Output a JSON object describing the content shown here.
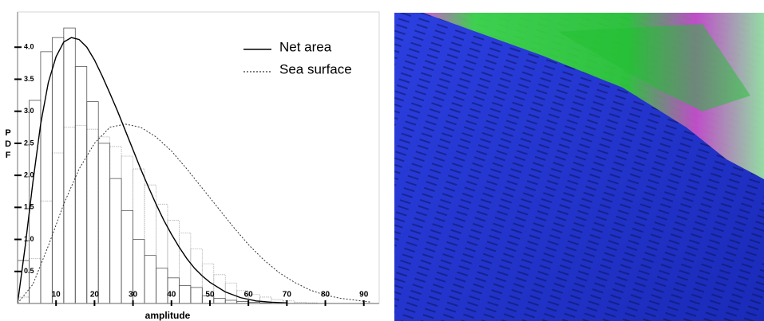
{
  "chart_data": {
    "type": "histogram",
    "x_label": "amplitude",
    "y_label": "PDF",
    "xlim": [
      0,
      94
    ],
    "ylim": [
      0,
      4.55
    ],
    "xticks": [
      10,
      20,
      30,
      40,
      50,
      60,
      70,
      80,
      90
    ],
    "yticks": [
      0.5,
      {
        "value": 1,
        "label": "1.0"
      },
      1.5,
      {
        "value": 2,
        "label": "2.0"
      },
      2.5,
      {
        "value": 3,
        "label": "3.0"
      },
      3.5,
      {
        "value": 4,
        "label": "4.0"
      }
    ],
    "bins": [
      0,
      3,
      6,
      9,
      12,
      15,
      18,
      21,
      24,
      27,
      30,
      33,
      36,
      39,
      42,
      45,
      48,
      51,
      54,
      57,
      60,
      63,
      66,
      69,
      72,
      75,
      78,
      81,
      84,
      87,
      90,
      93
    ],
    "histograms": [
      {
        "color": "#b0b0b0",
        "values": [
          0.1,
          0.7,
          1.6,
          2.35,
          2.75,
          2.78,
          2.72,
          2.6,
          2.45,
          2.3,
          2.1,
          1.85,
          1.55,
          1.3,
          1.1,
          0.85,
          0.62,
          0.45,
          0.32,
          0.2,
          0.14,
          0.1,
          0.06,
          0.04,
          0.02,
          0.01,
          0,
          0,
          0,
          0,
          0
        ]
      },
      {
        "color": "#555555",
        "values": [
          0.67,
          3.17,
          3.93,
          4.15,
          4.3,
          3.7,
          3.15,
          2.5,
          1.95,
          1.45,
          1.0,
          0.75,
          0.55,
          0.4,
          0.28,
          0.25,
          0.12,
          0.08,
          0.05,
          0.03,
          0.02,
          0.01,
          0,
          0,
          0,
          0,
          0,
          0,
          0,
          0,
          0
        ]
      }
    ],
    "series": [
      {
        "name": "Net area",
        "color": "#000000",
        "dash": "solid",
        "x": [
          0,
          2,
          4,
          6,
          8,
          10,
          12,
          14,
          16,
          18,
          20,
          22,
          24,
          26,
          28,
          30,
          32,
          34,
          36,
          38,
          40,
          42,
          44,
          46,
          48,
          50,
          54,
          58,
          62,
          66,
          70
        ],
        "values": [
          0,
          0.9,
          1.9,
          2.8,
          3.45,
          3.85,
          4.08,
          4.15,
          4.12,
          4.0,
          3.8,
          3.55,
          3.28,
          3.0,
          2.7,
          2.4,
          2.1,
          1.82,
          1.55,
          1.3,
          1.08,
          0.88,
          0.7,
          0.55,
          0.43,
          0.33,
          0.18,
          0.09,
          0.04,
          0.02,
          0.01
        ]
      },
      {
        "name": "Sea surface",
        "color": "#333333",
        "dash": "dotted",
        "x": [
          0,
          4,
          8,
          12,
          16,
          20,
          24,
          28,
          32,
          36,
          40,
          44,
          48,
          52,
          56,
          60,
          64,
          68,
          72,
          76,
          80,
          84,
          88,
          92
        ],
        "values": [
          0,
          0.3,
          0.9,
          1.55,
          2.1,
          2.5,
          2.75,
          2.8,
          2.75,
          2.6,
          2.38,
          2.1,
          1.8,
          1.5,
          1.2,
          0.92,
          0.68,
          0.48,
          0.33,
          0.21,
          0.13,
          0.08,
          0.05,
          0.02
        ]
      }
    ]
  }
}
